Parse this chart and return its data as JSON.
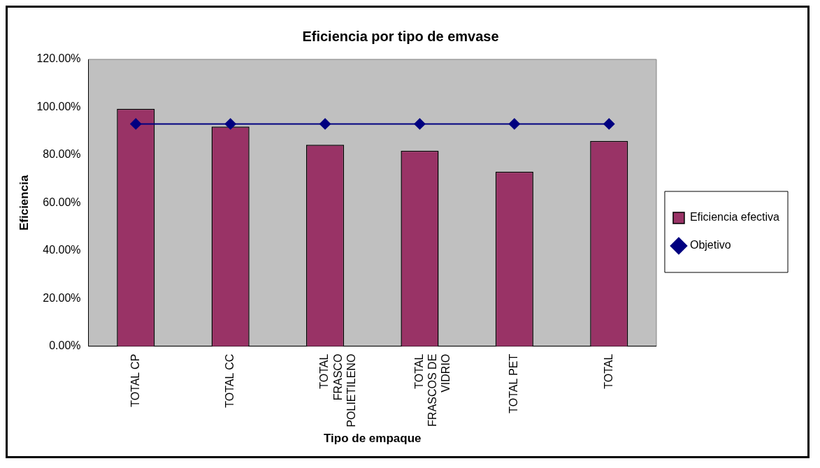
{
  "chart_data": {
    "type": "bar",
    "title": "Eficiencia por tipo de emvase",
    "xlabel": "Tipo de empaque",
    "ylabel": "Eficiencia",
    "categories": [
      "TOTAL CP",
      "TOTAL CC",
      "TOTAL FRASCO POLIETILENO",
      "TOTAL FRASCOS DE VIDRIO",
      "TOTAL PET",
      "TOTAL"
    ],
    "series": [
      {
        "name": "Eficiencia efectiva",
        "color": "#993366",
        "values": [
          99.3,
          91.9,
          84.3,
          81.8,
          73.0,
          85.9
        ]
      },
      {
        "name": "Objetivo",
        "type": "line",
        "color": "#000080",
        "marker": "diamond",
        "values": [
          93,
          93,
          93,
          93,
          93,
          93
        ]
      }
    ],
    "ylim": [
      0,
      120
    ],
    "yticks": [
      {
        "value": 0,
        "label": "0.00%"
      },
      {
        "value": 20,
        "label": "20.00%"
      },
      {
        "value": 40,
        "label": "40.00%"
      },
      {
        "value": 60,
        "label": "60.00%"
      },
      {
        "value": 80,
        "label": "80.00%"
      },
      {
        "value": 100,
        "label": "100.00%"
      },
      {
        "value": 120,
        "label": "120.00%"
      }
    ],
    "grid": false,
    "legend": "right"
  }
}
